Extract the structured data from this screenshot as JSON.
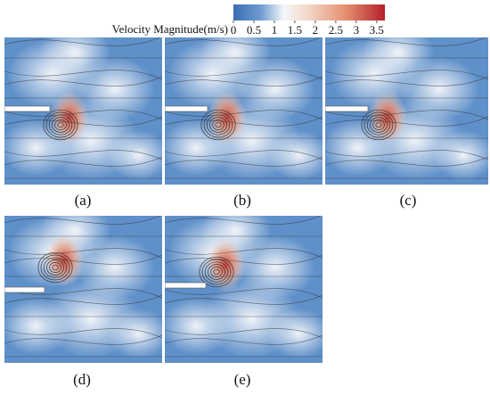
{
  "colorbar": {
    "title": "Velocity Magnitude(m/s)",
    "range": [
      0,
      3.7
    ],
    "ticks": [
      0,
      0.5,
      1,
      1.5,
      2,
      2.5,
      3,
      3.5
    ]
  },
  "panels": [
    {
      "label": "(a)"
    },
    {
      "label": "(b)"
    },
    {
      "label": "(c)"
    },
    {
      "label": "(d)"
    },
    {
      "label": "(e)"
    }
  ]
}
